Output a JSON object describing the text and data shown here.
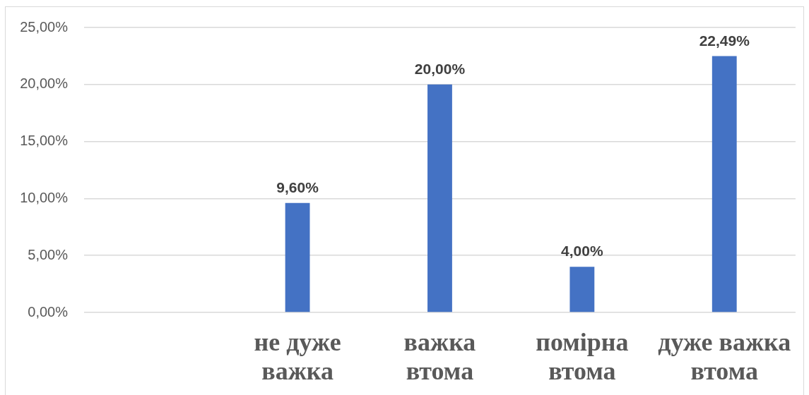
{
  "chart_data": {
    "type": "bar",
    "categories": [
      null,
      "не дуже важка",
      "важка втома",
      "помірна втома",
      "дуже важка втома"
    ],
    "values": [
      null,
      9.6,
      20,
      4,
      22.49
    ],
    "color": "#4472c4",
    "value_labels": [
      null,
      "9,60%",
      "20,00%",
      "4,00%",
      "22,49%"
    ],
    "ylim": [
      0,
      25
    ],
    "yticks": [
      {
        "value": 0,
        "label": "0,00%"
      },
      {
        "value": 5,
        "label": "5,00%"
      },
      {
        "value": 10,
        "label": "10,00%"
      },
      {
        "value": 15,
        "label": "15,00%"
      },
      {
        "value": 20,
        "label": "20,00%"
      },
      {
        "value": 25,
        "label": "25,00%"
      }
    ],
    "grid": "y"
  }
}
